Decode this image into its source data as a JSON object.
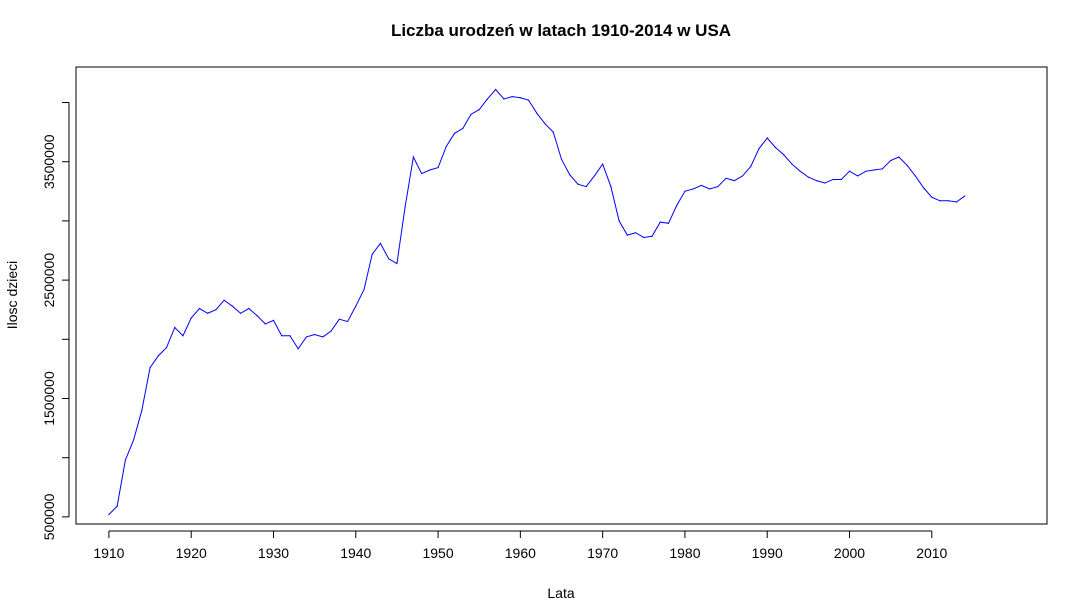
{
  "chart_data": {
    "type": "line",
    "title": "Liczba urodzeń w latach 1910-2014 w USA",
    "xlabel": "Lata",
    "ylabel": "Ilosc dzieci",
    "xlim": [
      1906,
      2024
    ],
    "ylim": [
      440000,
      4300000
    ],
    "x_ticks": [
      1910,
      1920,
      1930,
      1940,
      1950,
      1960,
      1970,
      1980,
      1990,
      2000,
      2010
    ],
    "y_ticks": [
      500000,
      1500000,
      2500000,
      3500000
    ],
    "grid": false,
    "legend": "none",
    "line_color": "#0000ff",
    "series": [
      {
        "x": [
          1910,
          1911,
          1912,
          1913,
          1914,
          1915,
          1916,
          1917,
          1918,
          1919,
          1920,
          1921,
          1922,
          1923,
          1924,
          1925,
          1926,
          1927,
          1928,
          1929,
          1930,
          1931,
          1932,
          1933,
          1934,
          1935,
          1936,
          1937,
          1938,
          1939,
          1940,
          1941,
          1942,
          1943,
          1944,
          1945,
          1946,
          1947,
          1948,
          1949,
          1950,
          1951,
          1952,
          1953,
          1954,
          1955,
          1956,
          1957,
          1958,
          1959,
          1960,
          1961,
          1962,
          1963,
          1964,
          1965,
          1966,
          1967,
          1968,
          1969,
          1970,
          1971,
          1972,
          1973,
          1974,
          1975,
          1976,
          1977,
          1978,
          1979,
          1980,
          1981,
          1982,
          1983,
          1984,
          1985,
          1986,
          1987,
          1988,
          1989,
          1990,
          1991,
          1992,
          1993,
          1994,
          1995,
          1996,
          1997,
          1998,
          1999,
          2000,
          2001,
          2002,
          2003,
          2004,
          2005,
          2006,
          2007,
          2008,
          2009,
          2010,
          2011,
          2012,
          2013,
          2014
        ],
        "y": [
          520000,
          590000,
          980000,
          1150000,
          1400000,
          1760000,
          1860000,
          1930000,
          2100000,
          2030000,
          2180000,
          2260000,
          2220000,
          2250000,
          2330000,
          2280000,
          2220000,
          2260000,
          2200000,
          2130000,
          2160000,
          2030000,
          2030000,
          1920000,
          2020000,
          2040000,
          2020000,
          2070000,
          2170000,
          2150000,
          2280000,
          2420000,
          2720000,
          2810000,
          2680000,
          2640000,
          3120000,
          3540000,
          3400000,
          3430000,
          3450000,
          3630000,
          3740000,
          3780000,
          3900000,
          3940000,
          4030000,
          4110000,
          4030000,
          4050000,
          4040000,
          4020000,
          3910000,
          3820000,
          3750000,
          3520000,
          3390000,
          3310000,
          3290000,
          3380000,
          3480000,
          3290000,
          3000000,
          2880000,
          2900000,
          2860000,
          2870000,
          2990000,
          2980000,
          3130000,
          3250000,
          3270000,
          3300000,
          3270000,
          3290000,
          3360000,
          3340000,
          3380000,
          3460000,
          3610000,
          3700000,
          3620000,
          3560000,
          3480000,
          3420000,
          3370000,
          3340000,
          3320000,
          3350000,
          3350000,
          3420000,
          3380000,
          3420000,
          3430000,
          3440000,
          3510000,
          3540000,
          3470000,
          3380000,
          3280000,
          3200000,
          3170000,
          3170000,
          3160000,
          3210000
        ]
      }
    ]
  }
}
